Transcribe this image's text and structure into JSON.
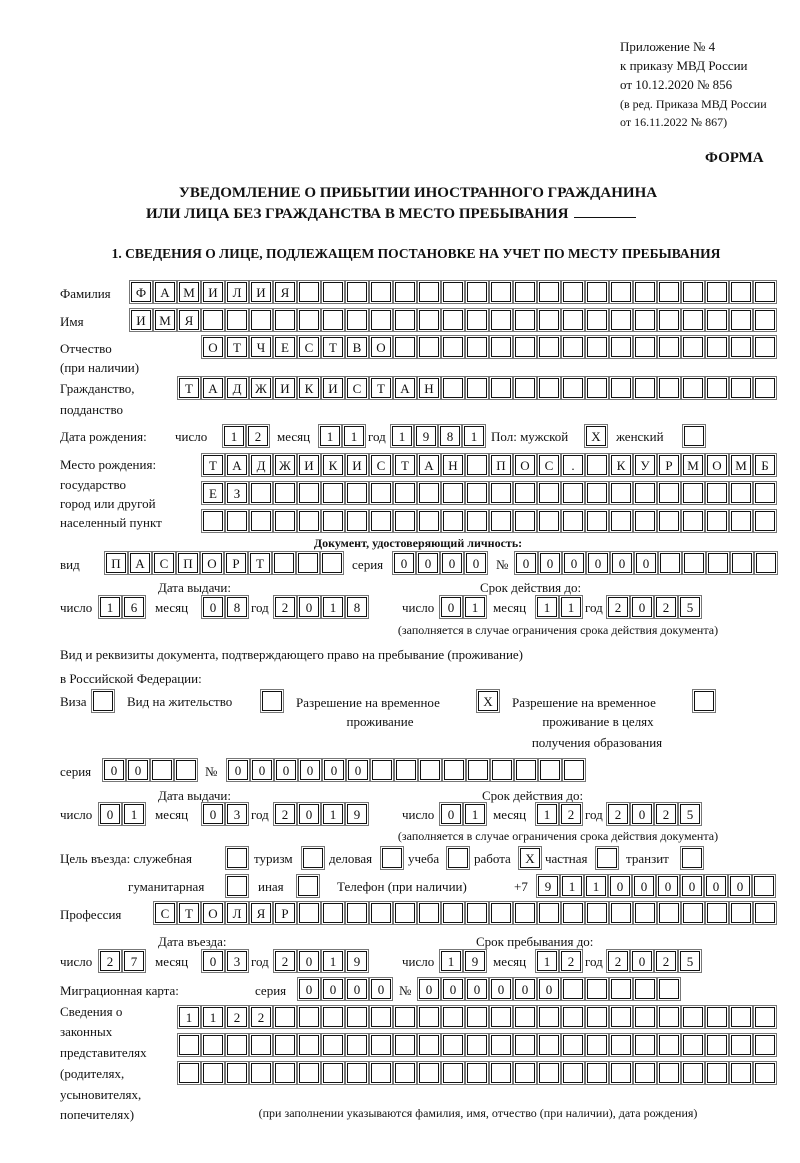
{
  "header": {
    "appendix": "Приложение № 4",
    "order": "к приказу МВД России",
    "order_date": "от 10.12.2020 № 856",
    "edition_1": "(в ред. Приказа МВД России",
    "edition_2": "от 16.11.2022 № 867)",
    "form_label": "ФОРМА"
  },
  "title": {
    "line1": "УВЕДОМЛЕНИЕ О ПРИБЫТИИ ИНОСТРАННОГО ГРАЖДАНИНА",
    "line2": "ИЛИ ЛИЦА БЕЗ ГРАЖДАНСТВА В МЕСТО ПРЕБЫВАНИЯ",
    "section1": "1. СВЕДЕНИЯ О ЛИЦЕ, ПОДЛЕЖАЩЕМ ПОСТАНОВКЕ НА УЧЕТ ПО МЕСТУ ПРЕБЫВАНИЯ"
  },
  "person": {
    "surname_label": "Фамилия",
    "surname": "ФАМИЛИЯ",
    "name_label": "Имя",
    "name": "ИМЯ",
    "patronymic_label": "Отчество",
    "patronymic_note": "(при наличии)",
    "patronymic": "ОТЧЕСТВО",
    "citizenship_label": "Гражданство,",
    "citizenship_label2": "подданство",
    "citizenship": "ТАДЖИКИСТАН",
    "birth": {
      "label": "Дата рождения:",
      "day_label": "число",
      "month_label": "месяц",
      "year_label": "год",
      "day": "12",
      "month": "11",
      "year": "1981"
    },
    "sex": {
      "label_male": "Пол: мужской",
      "male": "X",
      "label_female": "женский",
      "female": ""
    },
    "birthplace": {
      "label1": "Место рождения:",
      "label2": "государство",
      "label3": "город или другой",
      "label4": "населенный пункт",
      "row1": "ТАДЖИКИСТАН ПОС. КУРМОМБ",
      "row2": "ЕЗ",
      "row3": ""
    }
  },
  "id_document": {
    "heading": "Документ, удостоверяющий личность:",
    "kind_label": "вид",
    "kind": "ПАСПОРТ",
    "series_label": "серия",
    "series": "0000",
    "number_label": "№",
    "number": "000000",
    "issue_label": "Дата выдачи:",
    "valid_label": "Срок действия до:",
    "day_label": "число",
    "month_label": "месяц",
    "year_label": "год",
    "issue": {
      "day": "16",
      "month": "08",
      "year": "2018"
    },
    "valid": {
      "day": "01",
      "month": "11",
      "year": "2025"
    },
    "note": "(заполняется в случае ограничения срока действия документа)"
  },
  "stay_document": {
    "heading1": "Вид и реквизиты документа, подтверждающего право на пребывание (проживание)",
    "heading2": "в Российской Федерации:",
    "visa_label": "Виза",
    "visa": "",
    "residence_label": "Вид на жительство",
    "residence": "",
    "trp_label1": "Разрешение на временное",
    "trp_label2": "проживание",
    "trp": "X",
    "trp_edu_label1": "Разрешение на временное",
    "trp_edu_label2": "проживание в целях",
    "trp_edu_label3": "получения образования",
    "trp_edu": "",
    "series_label": "серия",
    "series": "00",
    "number_label": "№",
    "number": "000000",
    "issue_label": "Дата выдачи:",
    "valid_label": "Срок действия до:",
    "day_label": "число",
    "month_label": "месяц",
    "year_label": "год",
    "issue": {
      "day": "01",
      "month": "03",
      "year": "2019"
    },
    "valid": {
      "day": "01",
      "month": "12",
      "year": "2025"
    },
    "note": "(заполняется в случае ограничения срока действия документа)"
  },
  "purpose": {
    "label": "Цель въезда: служебная",
    "official": "",
    "tourism_label": "туризм",
    "tourism": "",
    "business_label": "деловая",
    "business": "",
    "study_label": "учеба",
    "study": "",
    "work_label": "работа",
    "work": "X",
    "private_label": "частная",
    "private": "",
    "transit_label": "транзит",
    "transit": "",
    "humanitarian_label": "гуманитарная",
    "humanitarian": "",
    "other_label": "иная",
    "other": ""
  },
  "phone": {
    "label": "Телефон (при наличии)",
    "prefix": "+7",
    "value": "911000000"
  },
  "profession": {
    "label": "Профессия",
    "value": "СТОЛЯР"
  },
  "entry": {
    "entry_label": "Дата въезда:",
    "stay_until_label": "Срок пребывания до:",
    "day_label": "число",
    "month_label": "месяц",
    "year_label": "год",
    "entry": {
      "day": "27",
      "month": "03",
      "year": "2019"
    },
    "until": {
      "day": "19",
      "month": "12",
      "year": "2025"
    }
  },
  "migration_card": {
    "label": "Миграционная карта:",
    "series_label": "серия",
    "series": "0000",
    "number_label": "№",
    "number": "000000"
  },
  "representatives": {
    "label1": "Сведения о",
    "label2": "законных",
    "label3": "представителях",
    "label4": "(родителях,",
    "label5": "усыновителях,",
    "label6": "попечителях)",
    "row1": "1122",
    "row2": "",
    "row3": "",
    "note": "(при заполнении указываются фамилия, имя, отчество (при наличии), дата рождения)"
  }
}
